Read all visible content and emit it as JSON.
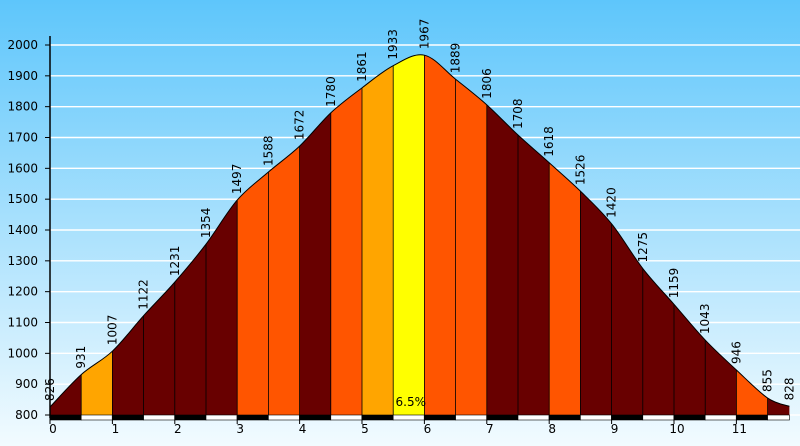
{
  "colors": {
    "bg_top": "#5ec6fb",
    "bg_bottom": "#f2fbff",
    "class_1": "#680000",
    "class_2": "#ff5500",
    "class_3": "#ffa500",
    "class_4": "#ffff00"
  },
  "chart_data": {
    "type": "area",
    "title": "",
    "xlabel": "",
    "ylabel": "",
    "xlim": [
      0,
      11.85
    ],
    "ylim": [
      800,
      2000
    ],
    "grid": true,
    "legend": "none",
    "y_ticks": [
      800,
      900,
      1000,
      1100,
      1200,
      1300,
      1400,
      1500,
      1600,
      1700,
      1800,
      1900,
      2000
    ],
    "x_ticks": [
      0,
      1,
      2,
      3,
      4,
      5,
      6,
      7,
      8,
      9,
      10,
      11
    ],
    "points": [
      {
        "x": 0.0,
        "y": 826,
        "label": "826"
      },
      {
        "x": 0.5,
        "y": 931,
        "label": "931"
      },
      {
        "x": 1.0,
        "y": 1007,
        "label": "1007"
      },
      {
        "x": 1.5,
        "y": 1122,
        "label": "1122"
      },
      {
        "x": 2.0,
        "y": 1231,
        "label": "1231"
      },
      {
        "x": 2.5,
        "y": 1354,
        "label": "1354"
      },
      {
        "x": 3.0,
        "y": 1497,
        "label": "1497"
      },
      {
        "x": 3.5,
        "y": 1588,
        "label": "1588"
      },
      {
        "x": 4.0,
        "y": 1672,
        "label": "1672"
      },
      {
        "x": 4.5,
        "y": 1780,
        "label": "1780"
      },
      {
        "x": 5.0,
        "y": 1861,
        "label": "1861"
      },
      {
        "x": 5.5,
        "y": 1933,
        "label": "1933"
      },
      {
        "x": 6.0,
        "y": 1967,
        "label": "1967"
      },
      {
        "x": 6.5,
        "y": 1889,
        "label": "1889"
      },
      {
        "x": 7.0,
        "y": 1806,
        "label": "1806"
      },
      {
        "x": 7.5,
        "y": 1708,
        "label": "1708"
      },
      {
        "x": 8.0,
        "y": 1618,
        "label": "1618"
      },
      {
        "x": 8.5,
        "y": 1526,
        "label": "1526"
      },
      {
        "x": 9.0,
        "y": 1420,
        "label": "1420"
      },
      {
        "x": 9.5,
        "y": 1275,
        "label": "1275"
      },
      {
        "x": 10.0,
        "y": 1159,
        "label": "1159"
      },
      {
        "x": 10.5,
        "y": 1043,
        "label": "1043"
      },
      {
        "x": 11.0,
        "y": 946,
        "label": "946"
      },
      {
        "x": 11.5,
        "y": 855,
        "label": "855"
      },
      {
        "x": 11.85,
        "y": 828,
        "label": "828"
      }
    ],
    "segments": [
      {
        "from": 0.0,
        "to": 0.5,
        "color_class": 1
      },
      {
        "from": 0.5,
        "to": 1.0,
        "color_class": 3
      },
      {
        "from": 1.0,
        "to": 1.5,
        "color_class": 1
      },
      {
        "from": 1.5,
        "to": 2.0,
        "color_class": 1
      },
      {
        "from": 2.0,
        "to": 2.5,
        "color_class": 1
      },
      {
        "from": 2.5,
        "to": 3.0,
        "color_class": 1
      },
      {
        "from": 3.0,
        "to": 3.5,
        "color_class": 2
      },
      {
        "from": 3.5,
        "to": 4.0,
        "color_class": 2
      },
      {
        "from": 4.0,
        "to": 4.5,
        "color_class": 1
      },
      {
        "from": 4.5,
        "to": 5.0,
        "color_class": 2
      },
      {
        "from": 5.0,
        "to": 5.5,
        "color_class": 3
      },
      {
        "from": 5.5,
        "to": 6.0,
        "color_class": 4,
        "label": "6.5%"
      },
      {
        "from": 6.0,
        "to": 6.5,
        "color_class": 2
      },
      {
        "from": 6.5,
        "to": 7.0,
        "color_class": 2
      },
      {
        "from": 7.0,
        "to": 7.5,
        "color_class": 1
      },
      {
        "from": 7.5,
        "to": 8.0,
        "color_class": 1
      },
      {
        "from": 8.0,
        "to": 8.5,
        "color_class": 2
      },
      {
        "from": 8.5,
        "to": 9.0,
        "color_class": 1
      },
      {
        "from": 9.0,
        "to": 9.5,
        "color_class": 1
      },
      {
        "from": 9.5,
        "to": 10.0,
        "color_class": 1
      },
      {
        "from": 10.0,
        "to": 10.5,
        "color_class": 1
      },
      {
        "from": 10.5,
        "to": 11.0,
        "color_class": 1
      },
      {
        "from": 11.0,
        "to": 11.5,
        "color_class": 2
      },
      {
        "from": 11.5,
        "to": 11.85,
        "color_class": 1
      }
    ]
  }
}
